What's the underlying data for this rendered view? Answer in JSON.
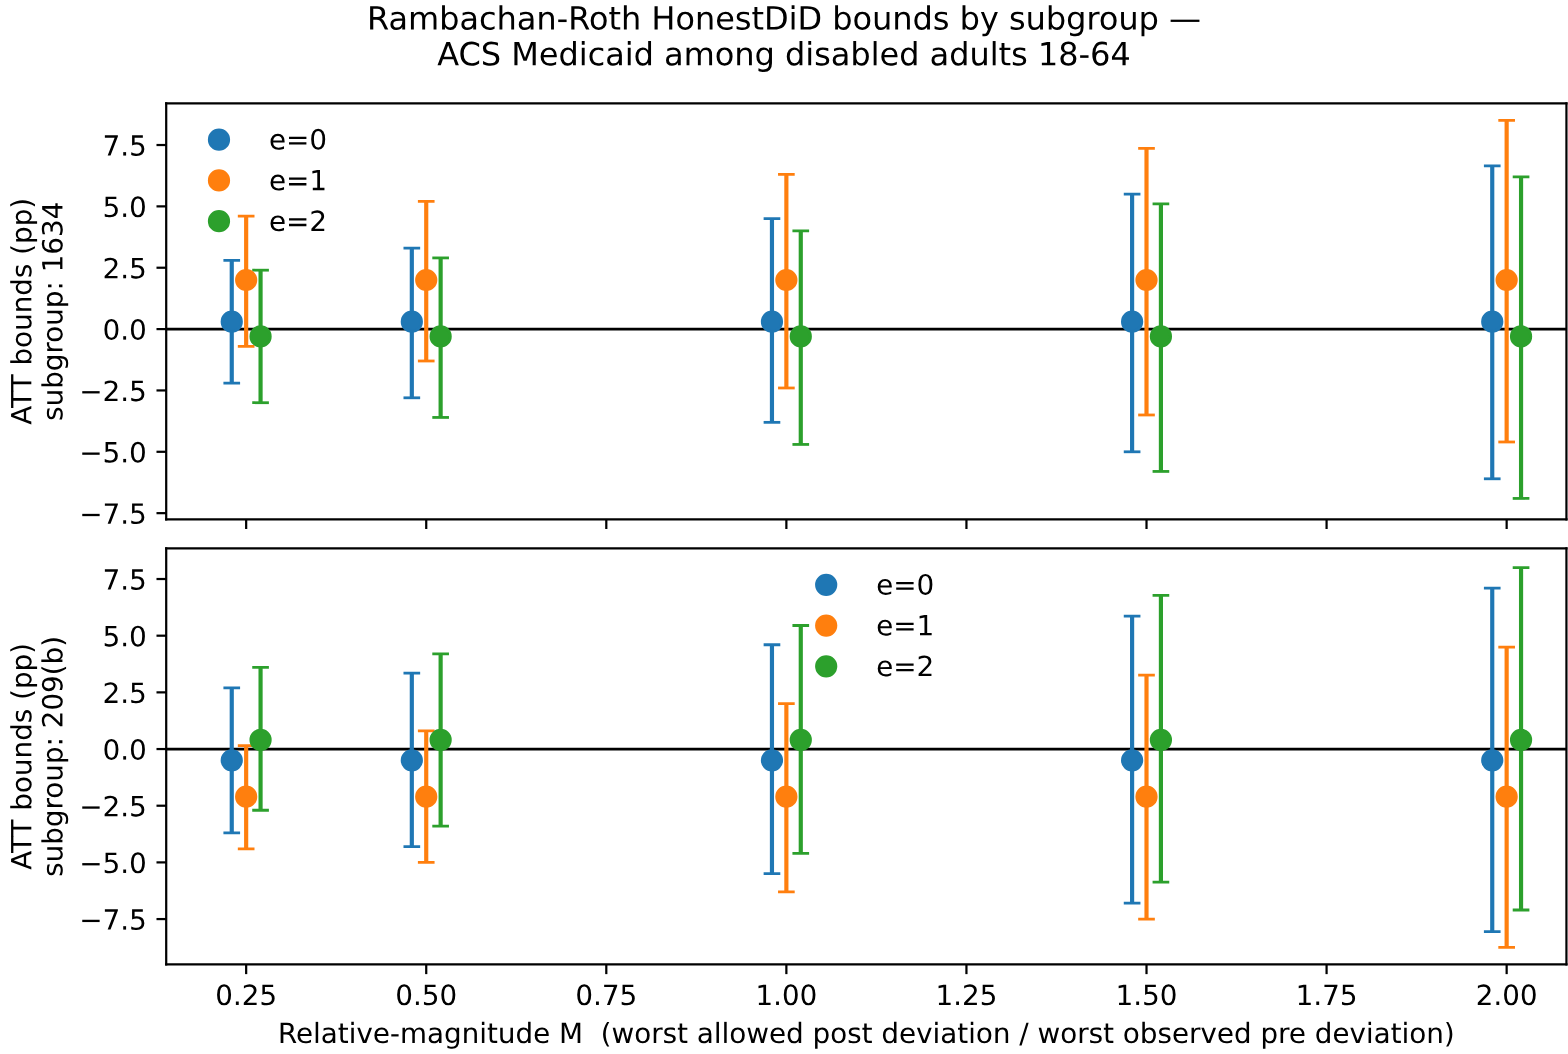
{
  "chart_data": [
    {
      "type": "scatter",
      "title": "Rambachan-Roth HonestDiD bounds by subgroup —\nACS Medicaid among disabled adults 18-64",
      "ylabel": "ATT bounds (pp)\nsubgroup: 1634",
      "xlim": [
        0.139,
        2.083
      ],
      "xticks": [
        {
          "value": 0.25,
          "label": null
        },
        {
          "value": 0.5,
          "label": null
        },
        {
          "value": 0.75,
          "label": null
        },
        {
          "value": 1.0,
          "label": null
        },
        {
          "value": 1.25,
          "label": null
        },
        {
          "value": 1.5,
          "label": null
        },
        {
          "value": 1.75,
          "label": null
        },
        {
          "value": 2.0,
          "label": null
        }
      ],
      "ylim": [
        -7.75,
        9.2
      ],
      "yticks": [
        {
          "value": -7.5,
          "label": "−7.5"
        },
        {
          "value": -5.0,
          "label": "−5.0"
        },
        {
          "value": -2.5,
          "label": "−2.5"
        },
        {
          "value": 0.0,
          "label": "0.0"
        },
        {
          "value": 2.5,
          "label": "2.5"
        },
        {
          "value": 5.0,
          "label": "5.0"
        },
        {
          "value": 7.5,
          "label": "7.5"
        }
      ],
      "tick_labels": "y",
      "marker": "circle",
      "legend": "top left",
      "grid": false,
      "ref_lines": [
        {
          "axis": "y",
          "value": 0,
          "color": "#000000"
        }
      ],
      "series": [
        {
          "name": "e=0",
          "color": "#1f77b4",
          "x": [
            0.23,
            0.48,
            0.98,
            1.48,
            1.98
          ],
          "values": [
            0.3,
            0.3,
            0.3,
            0.3,
            0.3
          ],
          "errors": [
            [
              -2.2,
              2.8
            ],
            [
              -2.8,
              3.3
            ],
            [
              -3.8,
              4.5
            ],
            [
              -5.0,
              5.5
            ],
            [
              -6.1,
              6.65
            ]
          ]
        },
        {
          "name": "e=1",
          "color": "#ff7f0e",
          "x": [
            0.25,
            0.5,
            1.0,
            1.5,
            2.0
          ],
          "values": [
            2.0,
            2.0,
            2.0,
            2.0,
            2.0
          ],
          "errors": [
            [
              -0.7,
              4.6
            ],
            [
              -1.3,
              5.2
            ],
            [
              -2.4,
              6.3
            ],
            [
              -3.5,
              7.36
            ],
            [
              -4.6,
              8.5
            ]
          ]
        },
        {
          "name": "e=2",
          "color": "#2ca02c",
          "x": [
            0.27,
            0.52,
            1.02,
            1.52,
            2.02
          ],
          "values": [
            -0.3,
            -0.3,
            -0.3,
            -0.3,
            -0.3
          ],
          "errors": [
            [
              -3.0,
              2.4
            ],
            [
              -3.6,
              2.9
            ],
            [
              -4.7,
              4.0
            ],
            [
              -5.8,
              5.1
            ],
            [
              -6.9,
              6.2
            ]
          ]
        }
      ]
    },
    {
      "type": "scatter",
      "ylabel": "ATT bounds (pp)\nsubgroup: 209(b)",
      "xlabel": "Relative-magnitude M  (worst allowed post deviation / worst observed pre deviation)",
      "xlim": [
        0.139,
        2.083
      ],
      "xticks": [
        {
          "value": 0.25,
          "label": "0.25"
        },
        {
          "value": 0.5,
          "label": "0.50"
        },
        {
          "value": 0.75,
          "label": "0.75"
        },
        {
          "value": 1.0,
          "label": "1.00"
        },
        {
          "value": 1.25,
          "label": "1.25"
        },
        {
          "value": 1.5,
          "label": "1.50"
        },
        {
          "value": 1.75,
          "label": "1.75"
        },
        {
          "value": 2.0,
          "label": "2.00"
        }
      ],
      "ylim": [
        -9.5,
        8.85
      ],
      "yticks": [
        {
          "value": -7.5,
          "label": "−7.5"
        },
        {
          "value": -5.0,
          "label": "−5.0"
        },
        {
          "value": -2.5,
          "label": "−2.5"
        },
        {
          "value": 0.0,
          "label": "0.0"
        },
        {
          "value": 2.5,
          "label": "2.5"
        },
        {
          "value": 5.0,
          "label": "5.0"
        },
        {
          "value": 7.5,
          "label": "7.5"
        }
      ],
      "marker": "circle",
      "legend": "top",
      "grid": false,
      "ref_lines": [
        {
          "axis": "y",
          "value": 0,
          "color": "#000000"
        }
      ],
      "series": [
        {
          "name": "e=0",
          "color": "#1f77b4",
          "x": [
            0.23,
            0.48,
            0.98,
            1.48,
            1.98
          ],
          "values": [
            -0.5,
            -0.5,
            -0.5,
            -0.5,
            -0.5
          ],
          "errors": [
            [
              -3.7,
              2.7
            ],
            [
              -4.3,
              3.35
            ],
            [
              -5.5,
              4.6
            ],
            [
              -6.8,
              5.86
            ],
            [
              -8.05,
              7.1
            ]
          ]
        },
        {
          "name": "e=1",
          "color": "#ff7f0e",
          "x": [
            0.25,
            0.5,
            1.0,
            1.5,
            2.0
          ],
          "values": [
            -2.1,
            -2.1,
            -2.1,
            -2.1,
            -2.1
          ],
          "errors": [
            [
              -4.4,
              0.15
            ],
            [
              -5.0,
              0.8
            ],
            [
              -6.3,
              2.0
            ],
            [
              -7.5,
              3.26
            ],
            [
              -8.75,
              4.5
            ]
          ]
        },
        {
          "name": "e=2",
          "color": "#2ca02c",
          "x": [
            0.27,
            0.52,
            1.02,
            1.52,
            2.02
          ],
          "values": [
            0.4,
            0.4,
            0.4,
            0.4,
            0.4
          ],
          "errors": [
            [
              -2.7,
              3.6
            ],
            [
              -3.4,
              4.2
            ],
            [
              -4.6,
              5.45
            ],
            [
              -5.87,
              6.78
            ],
            [
              -7.1,
              8.0
            ]
          ]
        }
      ]
    }
  ]
}
